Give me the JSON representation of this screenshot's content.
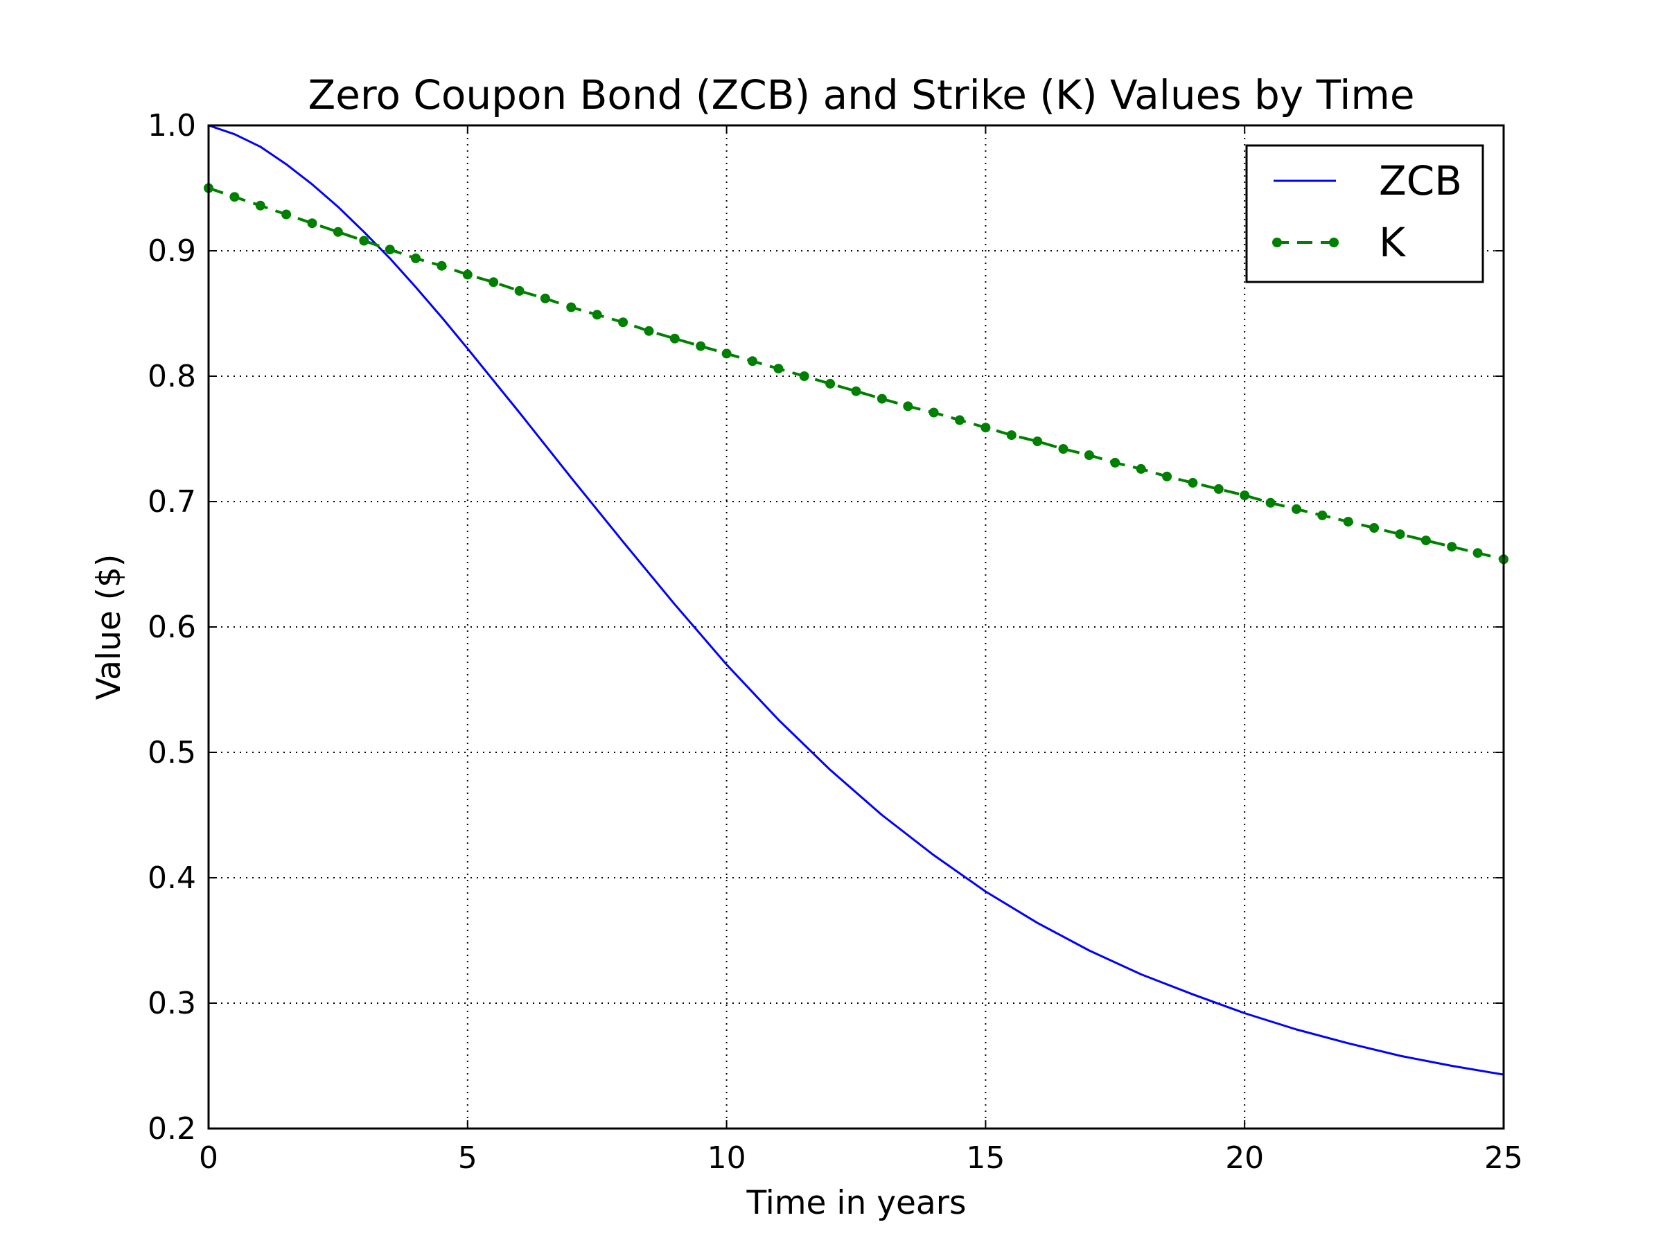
{
  "chart_data": {
    "type": "line",
    "title": "Zero Coupon Bond (ZCB) and Strike (K) Values by Time",
    "xlabel": "Time in years",
    "ylabel": "Value ($)",
    "xlim": [
      0,
      25
    ],
    "ylim": [
      0.2,
      1.0
    ],
    "xticks": [
      0,
      5,
      10,
      15,
      20,
      25
    ],
    "xtick_labels": [
      "0",
      "5",
      "10",
      "15",
      "20",
      "25"
    ],
    "yticks": [
      0.2,
      0.3,
      0.4,
      0.5,
      0.6,
      0.7,
      0.8,
      0.9,
      1.0
    ],
    "ytick_labels": [
      "0.2",
      "0.3",
      "0.4",
      "0.5",
      "0.6",
      "0.7",
      "0.8",
      "0.9",
      "1.0"
    ],
    "grid": true,
    "legend_position": "top-right",
    "series": [
      {
        "name": "ZCB",
        "color": "#0000ff",
        "style": "solid",
        "marker": "none",
        "x": [
          0,
          0.5,
          1,
          1.5,
          2,
          2.5,
          3,
          3.5,
          4,
          4.5,
          5,
          6,
          7,
          8,
          9,
          10,
          11,
          12,
          13,
          14,
          15,
          16,
          17,
          18,
          19,
          20,
          21,
          22,
          23,
          24,
          25
        ],
        "y": [
          1.0,
          0.993,
          0.983,
          0.969,
          0.953,
          0.935,
          0.915,
          0.894,
          0.871,
          0.847,
          0.822,
          0.771,
          0.719,
          0.668,
          0.618,
          0.57,
          0.526,
          0.486,
          0.45,
          0.418,
          0.389,
          0.364,
          0.342,
          0.323,
          0.307,
          0.292,
          0.279,
          0.268,
          0.258,
          0.25,
          0.243
        ]
      },
      {
        "name": "K",
        "color": "#008000",
        "style": "dashed",
        "marker": "dot",
        "x": [
          0,
          0.5,
          1,
          1.5,
          2,
          2.5,
          3,
          3.5,
          4,
          4.5,
          5,
          5.5,
          6,
          6.5,
          7,
          7.5,
          8,
          8.5,
          9,
          9.5,
          10,
          10.5,
          11,
          11.5,
          12,
          12.5,
          13,
          13.5,
          14,
          14.5,
          15,
          15.5,
          16,
          16.5,
          17,
          17.5,
          18,
          18.5,
          19,
          19.5,
          20,
          20.5,
          21,
          21.5,
          22,
          22.5,
          23,
          23.5,
          24,
          24.5,
          25
        ],
        "y": [
          0.95,
          0.943,
          0.936,
          0.929,
          0.922,
          0.915,
          0.908,
          0.901,
          0.894,
          0.888,
          0.881,
          0.875,
          0.868,
          0.862,
          0.855,
          0.849,
          0.843,
          0.836,
          0.83,
          0.824,
          0.818,
          0.812,
          0.806,
          0.8,
          0.794,
          0.788,
          0.782,
          0.776,
          0.771,
          0.765,
          0.759,
          0.753,
          0.748,
          0.742,
          0.737,
          0.731,
          0.726,
          0.72,
          0.715,
          0.71,
          0.705,
          0.699,
          0.694,
          0.689,
          0.684,
          0.679,
          0.674,
          0.669,
          0.664,
          0.659,
          0.654
        ]
      }
    ]
  }
}
